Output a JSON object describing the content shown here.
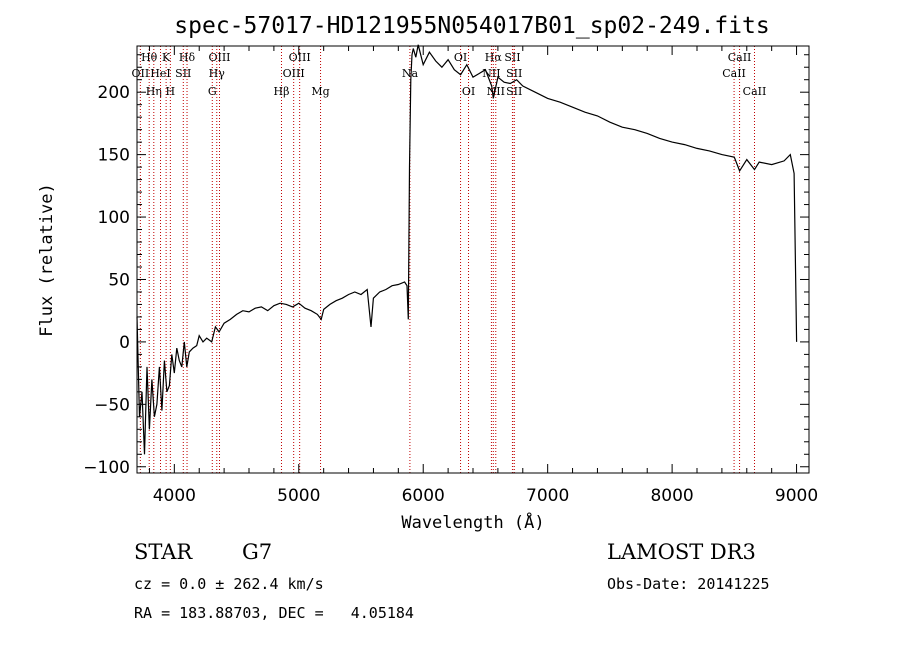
{
  "chart_data": {
    "type": "line",
    "title": "spec-57017-HD121955N054017B01_sp02-249.fits",
    "xlabel": "Wavelength (Å)",
    "ylabel": "Flux (relative)",
    "xlim": [
      3700,
      9100
    ],
    "ylim": [
      -105,
      237
    ],
    "x_ticks": [
      4000,
      5000,
      6000,
      7000,
      8000,
      9000
    ],
    "y_ticks": [
      -100,
      -50,
      0,
      50,
      100,
      150,
      200
    ],
    "series": [
      {
        "name": "flux",
        "x": [
          3700,
          3720,
          3740,
          3760,
          3780,
          3800,
          3820,
          3840,
          3860,
          3880,
          3900,
          3920,
          3940,
          3960,
          3980,
          4000,
          4020,
          4040,
          4060,
          4080,
          4100,
          4120,
          4150,
          4180,
          4200,
          4230,
          4260,
          4300,
          4330,
          4360,
          4400,
          4450,
          4500,
          4550,
          4600,
          4650,
          4700,
          4750,
          4800,
          4850,
          4900,
          4950,
          5000,
          5050,
          5100,
          5150,
          5180,
          5200,
          5250,
          5300,
          5350,
          5400,
          5450,
          5500,
          5550,
          5580,
          5600,
          5650,
          5700,
          5750,
          5800,
          5850,
          5870,
          5880,
          5890,
          5900,
          5910,
          5920,
          5940,
          5960,
          6000,
          6050,
          6100,
          6150,
          6200,
          6250,
          6300,
          6350,
          6400,
          6450,
          6500,
          6550,
          6563,
          6600,
          6650,
          6700,
          6750,
          6800,
          6900,
          7000,
          7100,
          7200,
          7300,
          7400,
          7500,
          7600,
          7700,
          7800,
          7900,
          8000,
          8100,
          8200,
          8300,
          8400,
          8500,
          8542,
          8600,
          8662,
          8700,
          8800,
          8900,
          8950,
          8980,
          9000
        ],
        "values": [
          20,
          -60,
          -40,
          -90,
          -20,
          -70,
          -30,
          -60,
          -50,
          -20,
          -55,
          -15,
          -40,
          -35,
          -10,
          -25,
          -5,
          -15,
          -20,
          0,
          -20,
          -8,
          -5,
          -3,
          5,
          0,
          3,
          0,
          12,
          8,
          15,
          18,
          22,
          25,
          24,
          27,
          28,
          25,
          29,
          31,
          30,
          28,
          31,
          27,
          25,
          22,
          18,
          26,
          30,
          33,
          35,
          38,
          40,
          38,
          42,
          12,
          35,
          40,
          42,
          45,
          46,
          48,
          45,
          18,
          140,
          210,
          230,
          235,
          228,
          238,
          222,
          232,
          225,
          220,
          226,
          218,
          214,
          222,
          212,
          215,
          218,
          205,
          195,
          212,
          208,
          207,
          210,
          205,
          200,
          195,
          192,
          188,
          184,
          181,
          176,
          172,
          170,
          167,
          163,
          160,
          158,
          155,
          153,
          150,
          148,
          137,
          146,
          138,
          144,
          142,
          145,
          150,
          135,
          0
        ]
      }
    ],
    "line_markers": [
      {
        "label": "Hθ",
        "x": 3798,
        "row": 1
      },
      {
        "label": "OII",
        "x": 3727,
        "row": 2
      },
      {
        "label": "Hη",
        "x": 3835,
        "row": 3
      },
      {
        "label": "HeI",
        "x": 3889,
        "row": 2
      },
      {
        "label": "K",
        "x": 3934,
        "row": 1
      },
      {
        "label": "H",
        "x": 3968,
        "row": 3
      },
      {
        "label": "SII",
        "x": 4072,
        "row": 2
      },
      {
        "label": "Hδ",
        "x": 4102,
        "row": 1
      },
      {
        "label": "OIII",
        "x": 4363,
        "row": 1
      },
      {
        "label": "Hγ",
        "x": 4341,
        "row": 2
      },
      {
        "label": "G",
        "x": 4305,
        "row": 3
      },
      {
        "label": "Hβ",
        "x": 4861,
        "row": 3
      },
      {
        "label": "OIII",
        "x": 5007,
        "row": 1
      },
      {
        "label": "OIII",
        "x": 4959,
        "row": 2
      },
      {
        "label": "Mg",
        "x": 5175,
        "row": 3
      },
      {
        "label": "Na",
        "x": 5893,
        "row": 2
      },
      {
        "label": "OI",
        "x": 6300,
        "row": 1
      },
      {
        "label": "OI",
        "x": 6364,
        "row": 3
      },
      {
        "label": "Hα",
        "x": 6563,
        "row": 1
      },
      {
        "label": "NII",
        "x": 6548,
        "row": 2
      },
      {
        "label": "NII",
        "x": 6583,
        "row": 3
      },
      {
        "label": "SII",
        "x": 6717,
        "row": 1
      },
      {
        "label": "SII",
        "x": 6731,
        "row": 2
      },
      {
        "label": "SII",
        "x": 6731,
        "row": 3
      },
      {
        "label": "CaII",
        "x": 8542,
        "row": 1
      },
      {
        "label": "CaII",
        "x": 8498,
        "row": 2
      },
      {
        "label": "CaII",
        "x": 8662,
        "row": 3
      }
    ]
  },
  "info": {
    "object_class": "STAR",
    "subclass": "G7",
    "survey": "LAMOST DR3",
    "cz": "cz = 0.0 ± 262.4 km/s",
    "obs_date": "Obs-Date: 20141225",
    "coords": "RA = 183.88703, DEC =   4.05184"
  }
}
